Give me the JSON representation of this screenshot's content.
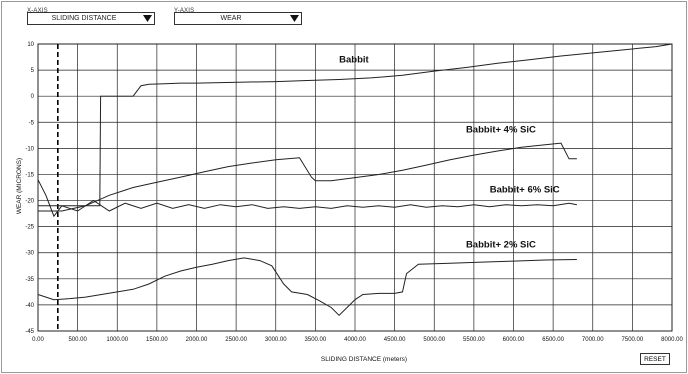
{
  "controls": {
    "x_axis_label": "X-AXIS",
    "y_axis_label": "Y-AXIS",
    "x_axis_value": "SLIDING DISTANCE",
    "y_axis_value": "WEAR",
    "reset_label": "RESET"
  },
  "chart_data": {
    "type": "line",
    "xlabel": "SLIDING DISTANCE (meters)",
    "ylabel": "WEAR (MICRONS)",
    "xlim": [
      0,
      8000
    ],
    "ylim": [
      -45,
      10
    ],
    "x_ticks": [
      "0.00",
      "500.00",
      "1000.00",
      "1500.00",
      "2000.00",
      "2500.00",
      "3000.00",
      "3500.00",
      "4000.00",
      "4500.00",
      "5000.00",
      "5500.00",
      "6000.00",
      "6500.00",
      "7000.00",
      "7500.00",
      "8000.00"
    ],
    "y_ticks": [
      "10",
      "5",
      "0",
      "-5",
      "-10",
      "-15",
      "-20",
      "-25",
      "-30",
      "-35",
      "-40",
      "-45"
    ],
    "grid": true,
    "marker_line_x": 250,
    "series": [
      {
        "name": "Babbit",
        "color": "#222222",
        "points": [
          [
            0,
            -21
          ],
          [
            200,
            -21
          ],
          [
            400,
            -21
          ],
          [
            600,
            -21
          ],
          [
            780,
            -21
          ],
          [
            790,
            0
          ],
          [
            900,
            0
          ],
          [
            1000,
            0
          ],
          [
            1100,
            0
          ],
          [
            1200,
            0
          ],
          [
            1300,
            2
          ],
          [
            1400,
            2.3
          ],
          [
            1600,
            2.4
          ],
          [
            1800,
            2.5
          ],
          [
            2000,
            2.5
          ],
          [
            2300,
            2.6
          ],
          [
            2600,
            2.7
          ],
          [
            3000,
            2.8
          ],
          [
            3400,
            3
          ],
          [
            3800,
            3.2
          ],
          [
            4200,
            3.5
          ],
          [
            4600,
            4
          ],
          [
            5000,
            4.8
          ],
          [
            5400,
            5.5
          ],
          [
            5800,
            6.3
          ],
          [
            6200,
            7
          ],
          [
            6600,
            7.7
          ],
          [
            7000,
            8.3
          ],
          [
            7400,
            8.9
          ],
          [
            7800,
            9.5
          ],
          [
            8000,
            10
          ]
        ]
      },
      {
        "name": "Babbit+ 4% SiC",
        "color": "#222222",
        "points": [
          [
            0,
            -22
          ],
          [
            300,
            -22
          ],
          [
            600,
            -21
          ],
          [
            900,
            -19
          ],
          [
            1200,
            -17.5
          ],
          [
            1500,
            -16.5
          ],
          [
            1800,
            -15.5
          ],
          [
            2100,
            -14.5
          ],
          [
            2400,
            -13.5
          ],
          [
            2700,
            -12.8
          ],
          [
            3000,
            -12.2
          ],
          [
            3300,
            -11.8
          ],
          [
            3450,
            -15.5
          ],
          [
            3500,
            -16.2
          ],
          [
            3700,
            -16.2
          ],
          [
            4000,
            -15.6
          ],
          [
            4300,
            -15
          ],
          [
            4600,
            -14.2
          ],
          [
            4900,
            -13.2
          ],
          [
            5200,
            -12.2
          ],
          [
            5500,
            -11.3
          ],
          [
            5800,
            -10.5
          ],
          [
            6100,
            -9.8
          ],
          [
            6400,
            -9.3
          ],
          [
            6600,
            -9
          ],
          [
            6700,
            -12
          ],
          [
            6800,
            -12
          ]
        ]
      },
      {
        "name": "Babbit+ 6% SiC",
        "color": "#222222",
        "points": [
          [
            0,
            -16
          ],
          [
            100,
            -19
          ],
          [
            200,
            -23
          ],
          [
            300,
            -21
          ],
          [
            500,
            -22
          ],
          [
            700,
            -20
          ],
          [
            900,
            -22
          ],
          [
            1100,
            -20.5
          ],
          [
            1300,
            -21.5
          ],
          [
            1500,
            -20.5
          ],
          [
            1700,
            -21.5
          ],
          [
            1900,
            -20.8
          ],
          [
            2100,
            -21.5
          ],
          [
            2300,
            -20.8
          ],
          [
            2500,
            -21.2
          ],
          [
            2700,
            -20.8
          ],
          [
            2900,
            -21.5
          ],
          [
            3100,
            -21.2
          ],
          [
            3300,
            -21.5
          ],
          [
            3500,
            -21.2
          ],
          [
            3700,
            -21.5
          ],
          [
            3900,
            -21
          ],
          [
            4100,
            -21.3
          ],
          [
            4300,
            -21
          ],
          [
            4500,
            -21.3
          ],
          [
            4700,
            -20.8
          ],
          [
            4900,
            -21.3
          ],
          [
            5100,
            -21
          ],
          [
            5300,
            -21.2
          ],
          [
            5500,
            -20.8
          ],
          [
            5700,
            -21.2
          ],
          [
            5900,
            -20.8
          ],
          [
            6100,
            -21
          ],
          [
            6300,
            -20.8
          ],
          [
            6500,
            -21
          ],
          [
            6700,
            -20.5
          ],
          [
            6800,
            -20.8
          ]
        ]
      },
      {
        "name": "Babbit+ 2% SiC",
        "color": "#222222",
        "points": [
          [
            0,
            -38
          ],
          [
            200,
            -39
          ],
          [
            400,
            -38.8
          ],
          [
            600,
            -38.5
          ],
          [
            800,
            -38
          ],
          [
            1000,
            -37.5
          ],
          [
            1200,
            -37
          ],
          [
            1400,
            -36
          ],
          [
            1600,
            -34.5
          ],
          [
            1800,
            -33.5
          ],
          [
            2000,
            -32.8
          ],
          [
            2200,
            -32.2
          ],
          [
            2400,
            -31.5
          ],
          [
            2600,
            -31
          ],
          [
            2800,
            -31.5
          ],
          [
            2950,
            -32.5
          ],
          [
            3100,
            -36
          ],
          [
            3200,
            -37.5
          ],
          [
            3400,
            -38
          ],
          [
            3550,
            -39.2
          ],
          [
            3700,
            -40.5
          ],
          [
            3800,
            -42
          ],
          [
            3900,
            -40.5
          ],
          [
            4000,
            -39
          ],
          [
            4100,
            -38
          ],
          [
            4300,
            -37.8
          ],
          [
            4500,
            -37.8
          ],
          [
            4600,
            -37.5
          ],
          [
            4650,
            -34
          ],
          [
            4800,
            -32.2
          ],
          [
            5200,
            -32
          ],
          [
            5600,
            -31.8
          ],
          [
            6000,
            -31.6
          ],
          [
            6400,
            -31.4
          ],
          [
            6800,
            -31.3
          ]
        ]
      }
    ],
    "annotations": [
      {
        "text": "Babbit",
        "x": 3800,
        "y": 6.5
      },
      {
        "text": "Babbit+ 4% SiC",
        "x": 5400,
        "y": -7
      },
      {
        "text": "Babbit+ 6% SiC",
        "x": 5700,
        "y": -18.5
      },
      {
        "text": "Babbit+ 2% SiC",
        "x": 5400,
        "y": -29
      }
    ]
  }
}
